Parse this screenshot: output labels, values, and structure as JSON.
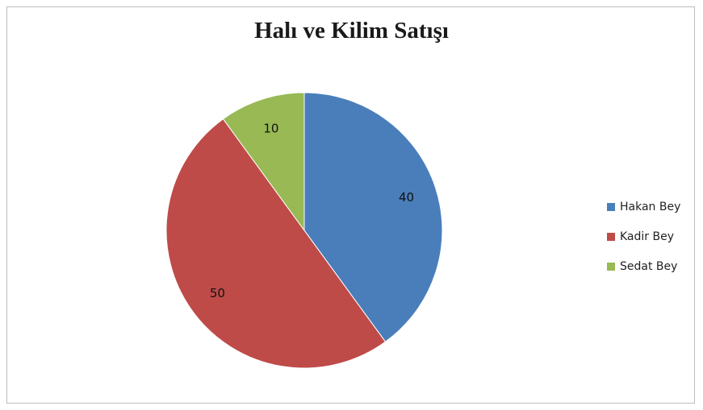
{
  "chart_data": {
    "type": "pie",
    "title": "Halı ve Kilim Satışı",
    "categories": [
      "Hakan Bey",
      "Kadir Bey",
      "Sedat Bey"
    ],
    "values": [
      40,
      50,
      10
    ],
    "data_labels": [
      "40",
      "50",
      "10"
    ],
    "colors": [
      "#4a7ebb",
      "#be4b48",
      "#98b954"
    ],
    "legend": "right"
  }
}
